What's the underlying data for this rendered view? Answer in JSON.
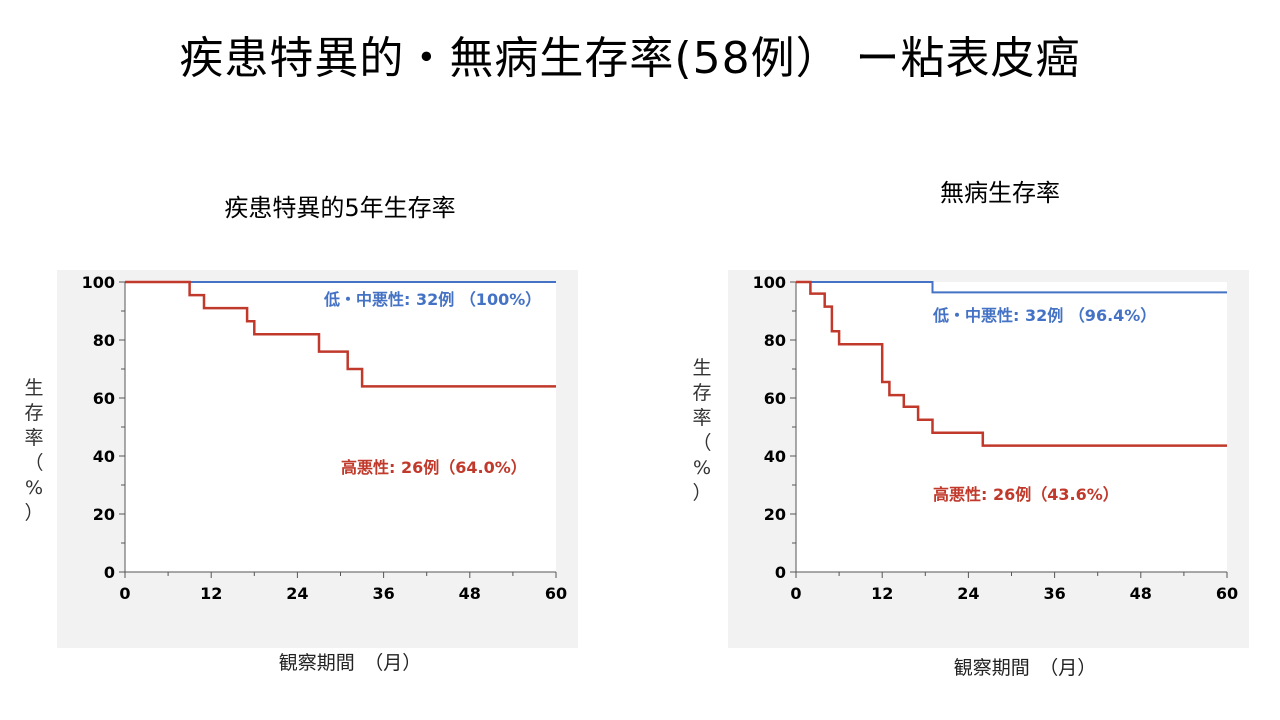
{
  "slide": {
    "title": "疾患特異的・無病生存率(58例） ー粘表皮癌"
  },
  "colors": {
    "low_grade": "#4472c4",
    "high_grade": "#c0392b",
    "panel_bg": "#f2f2f2"
  },
  "chart_data": [
    {
      "type": "line",
      "step": true,
      "title": "疾患特異的5年生存率",
      "xlabel": "観察期間　（月）",
      "ylabel": [
        "生",
        "存",
        "率",
        "（",
        "%",
        "）"
      ],
      "xlim": [
        0,
        60
      ],
      "ylim": [
        0,
        100
      ],
      "xticks": [
        0,
        12,
        24,
        36,
        48,
        60
      ],
      "yticks": [
        0,
        20,
        40,
        60,
        80,
        100
      ],
      "series": [
        {
          "key": "low_grade",
          "label": "低・中悪性: 32例 （100%）",
          "color": "#4472c4",
          "points": [
            [
              0,
              100
            ],
            [
              60,
              100
            ]
          ]
        },
        {
          "key": "high_grade",
          "label": "高悪性: 26例（64.0%）",
          "color": "#c0392b",
          "points": [
            [
              0,
              100
            ],
            [
              9,
              100
            ],
            [
              9,
              95.5
            ],
            [
              11,
              95.5
            ],
            [
              11,
              91
            ],
            [
              17,
              91
            ],
            [
              17,
              86.5
            ],
            [
              18,
              86.5
            ],
            [
              18,
              82
            ],
            [
              27,
              82
            ],
            [
              27,
              76
            ],
            [
              31,
              76
            ],
            [
              31,
              70
            ],
            [
              33,
              70
            ],
            [
              33,
              64
            ],
            [
              60,
              64
            ]
          ]
        }
      ]
    },
    {
      "type": "line",
      "step": true,
      "title": "無病生存率",
      "xlabel": "観察期間　（月）",
      "ylabel": [
        "生",
        "存",
        "率",
        "（",
        "%",
        "）"
      ],
      "xlim": [
        0,
        60
      ],
      "ylim": [
        0,
        100
      ],
      "xticks": [
        0,
        12,
        24,
        36,
        48,
        60
      ],
      "yticks": [
        0,
        20,
        40,
        60,
        80,
        100
      ],
      "series": [
        {
          "key": "low_grade",
          "label": "低・中悪性: 32例 （96.4%）",
          "color": "#4472c4",
          "points": [
            [
              0,
              100
            ],
            [
              19,
              100
            ],
            [
              19,
              96.4
            ],
            [
              60,
              96.4
            ]
          ]
        },
        {
          "key": "high_grade",
          "label": "高悪性: 26例（43.6%）",
          "color": "#c0392b",
          "points": [
            [
              0,
              100
            ],
            [
              2,
              100
            ],
            [
              2,
              96
            ],
            [
              4,
              96
            ],
            [
              4,
              91.5
            ],
            [
              5,
              91.5
            ],
            [
              5,
              83
            ],
            [
              6,
              83
            ],
            [
              6,
              78.5
            ],
            [
              12,
              78.5
            ],
            [
              12,
              65.5
            ],
            [
              13,
              65.5
            ],
            [
              13,
              61
            ],
            [
              15,
              61
            ],
            [
              15,
              57
            ],
            [
              17,
              57
            ],
            [
              17,
              52.5
            ],
            [
              19,
              52.5
            ],
            [
              19,
              48
            ],
            [
              26,
              48
            ],
            [
              26,
              43.6
            ],
            [
              60,
              43.6
            ]
          ]
        }
      ]
    }
  ]
}
